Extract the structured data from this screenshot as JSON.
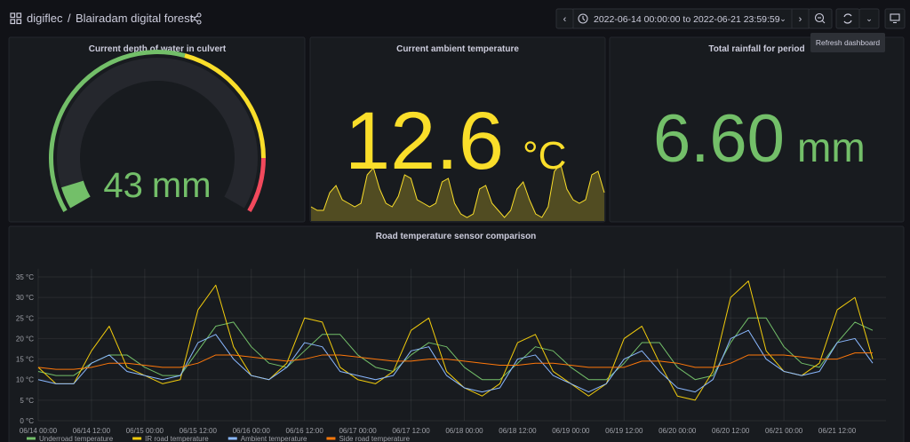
{
  "header": {
    "org": "digiflec",
    "title": "Blairadam digital forest",
    "time_range": "2022-06-14 00:00:00 to 2022-06-21 23:59:59",
    "tooltip": "Refresh dashboard"
  },
  "chart_data": [
    {
      "type": "gauge",
      "title": "Current depth of water in culvert",
      "value": 43,
      "unit": "mm",
      "range": [
        0,
        800
      ],
      "thresholds": [
        {
          "value": 0,
          "color": "#73bf69"
        },
        {
          "value": 450,
          "color": "#fade2a"
        },
        {
          "value": 700,
          "color": "#f2495c"
        }
      ]
    },
    {
      "type": "stat",
      "title": "Current ambient temperature",
      "value": 12.6,
      "unit": "°C",
      "color": "#fade2a",
      "values": [
        10,
        9,
        9,
        14,
        16,
        12,
        11,
        10,
        11,
        19,
        21,
        15,
        11,
        10,
        13,
        19,
        18,
        12,
        11,
        10,
        11,
        17,
        18,
        11,
        8,
        7,
        8,
        15,
        16,
        11,
        9,
        7,
        9,
        15,
        17,
        12,
        8,
        7,
        10,
        20,
        22,
        15,
        12,
        11,
        12,
        19,
        20,
        14
      ]
    },
    {
      "type": "stat",
      "title": "Total rainfall for period",
      "value": 6.6,
      "value_label": "6.60",
      "unit": "mm",
      "color": "#73bf69"
    },
    {
      "type": "line",
      "title": "Road temperature sensor comparison",
      "x": [
        0,
        4,
        8,
        12,
        16,
        20,
        24,
        28,
        32,
        36,
        40,
        44,
        48,
        52,
        56,
        60,
        64,
        68,
        72,
        76,
        80,
        84,
        88,
        92,
        96,
        100,
        104,
        108,
        112,
        116,
        120,
        124,
        128,
        132,
        136,
        140,
        144,
        148,
        152,
        156,
        160,
        164,
        168,
        172,
        176,
        180,
        184,
        188
      ],
      "xlim": [
        0,
        191
      ],
      "xticks": [
        {
          "value": 0,
          "label": "06/14 00:00"
        },
        {
          "value": 12,
          "label": "06/14 12:00"
        },
        {
          "value": 24,
          "label": "06/15 00:00"
        },
        {
          "value": 36,
          "label": "06/15 12:00"
        },
        {
          "value": 48,
          "label": "06/16 00:00"
        },
        {
          "value": 60,
          "label": "06/16 12:00"
        },
        {
          "value": 72,
          "label": "06/17 00:00"
        },
        {
          "value": 84,
          "label": "06/17 12:00"
        },
        {
          "value": 96,
          "label": "06/18 00:00"
        },
        {
          "value": 108,
          "label": "06/18 12:00"
        },
        {
          "value": 120,
          "label": "06/19 00:00"
        },
        {
          "value": 132,
          "label": "06/19 12:00"
        },
        {
          "value": 144,
          "label": "06/20 00:00"
        },
        {
          "value": 156,
          "label": "06/20 12:00"
        },
        {
          "value": 168,
          "label": "06/21 00:00"
        },
        {
          "value": 180,
          "label": "06/21 12:00"
        }
      ],
      "ylim": [
        0,
        37
      ],
      "yticks": [
        {
          "value": 0,
          "label": "0 °C"
        },
        {
          "value": 5,
          "label": "5 °C"
        },
        {
          "value": 10,
          "label": "10 °C"
        },
        {
          "value": 15,
          "label": "15 °C"
        },
        {
          "value": 20,
          "label": "20 °C"
        },
        {
          "value": 25,
          "label": "25 °C"
        },
        {
          "value": 30,
          "label": "30 °C"
        },
        {
          "value": 35,
          "label": "35 °C"
        }
      ],
      "grid": true,
      "legend": "bottom",
      "series": [
        {
          "name": "Underroad temperature",
          "color": "#73bf69",
          "values": [
            12,
            11,
            11,
            14,
            16,
            16,
            13,
            11,
            11,
            17,
            23,
            24,
            18,
            14,
            13,
            17,
            21,
            21,
            16,
            13,
            12,
            16,
            19,
            18,
            13,
            10,
            10,
            14,
            18,
            17,
            13,
            10,
            10,
            14,
            19,
            19,
            13,
            10,
            11,
            19,
            25,
            25,
            18,
            14,
            13,
            19,
            24,
            22
          ]
        },
        {
          "name": "IR road temperature",
          "color": "#f2cc0c",
          "values": [
            13,
            9,
            9,
            17,
            23,
            13,
            11,
            9,
            10,
            27,
            33,
            18,
            11,
            10,
            14,
            25,
            24,
            13,
            10,
            9,
            12,
            22,
            25,
            12,
            8,
            6,
            9,
            19,
            21,
            12,
            9,
            6,
            9,
            20,
            23,
            14,
            6,
            5,
            12,
            30,
            34,
            17,
            12,
            11,
            14,
            27,
            30,
            15
          ]
        },
        {
          "name": "Ambient temperature",
          "color": "#8ab8ff",
          "values": [
            10,
            9,
            9,
            14,
            16,
            12,
            11,
            10,
            11,
            19,
            21,
            15,
            11,
            10,
            13,
            19,
            18,
            12,
            11,
            10,
            11,
            17,
            18,
            11,
            8,
            7,
            8,
            15,
            16,
            11,
            9,
            7,
            9,
            15,
            17,
            12,
            8,
            7,
            10,
            20,
            22,
            15,
            12,
            11,
            12,
            19,
            20,
            14
          ]
        },
        {
          "name": "Side road temperature",
          "color": "#ff780a",
          "values": [
            13,
            12.5,
            12.5,
            13,
            14,
            14,
            13.5,
            13,
            13,
            14,
            16,
            16,
            15.5,
            15,
            14.5,
            15,
            16,
            16,
            15.5,
            15,
            14.5,
            14.5,
            15,
            15,
            14.5,
            14,
            13.5,
            13.5,
            14,
            14,
            13.5,
            13,
            13,
            13,
            14.5,
            14.5,
            14,
            13,
            13,
            14,
            16,
            16,
            16,
            15.5,
            15,
            15,
            16.5,
            16.5
          ]
        }
      ]
    }
  ]
}
